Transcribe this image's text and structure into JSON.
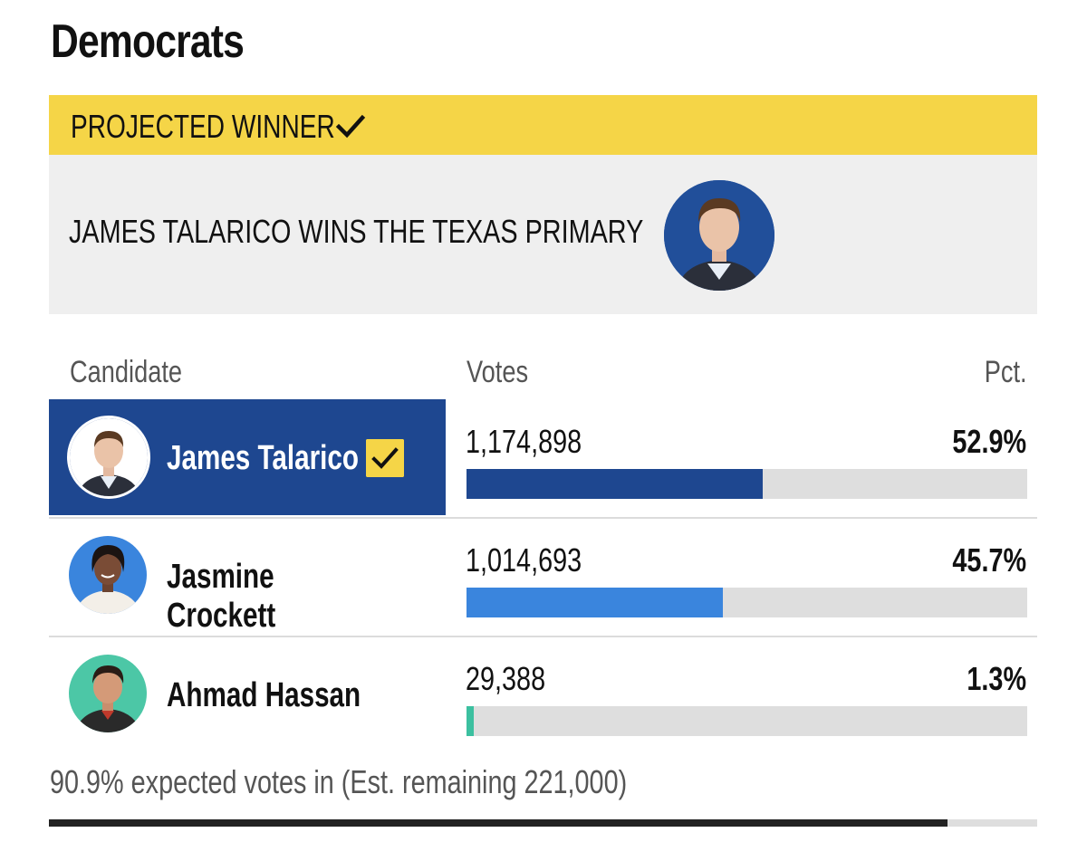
{
  "party_title": "Democrats",
  "banner": {
    "label": "PROJECTED WINNER",
    "accent": "#f5d547"
  },
  "winner_headline": "JAMES TALARICO WINS THE TEXAS PRIMARY",
  "table": {
    "headers": {
      "candidate": "Candidate",
      "votes": "Votes",
      "pct": "Pct."
    },
    "rows": [
      {
        "name": "James Talarico",
        "votes": "1,174,898",
        "pct": "52.9%",
        "share": 52.9,
        "bar_color": "#1e4790",
        "winner": true,
        "avatar_color": "#ffffff"
      },
      {
        "name": "Jasmine Crockett",
        "votes": "1,014,693",
        "pct": "45.7%",
        "share": 45.7,
        "bar_color": "#3a85dd",
        "winner": false,
        "avatar_color": "#3a85dd"
      },
      {
        "name": "Ahmad Hassan",
        "votes": "29,388",
        "pct": "1.3%",
        "share": 1.3,
        "bar_color": "#3cc0a0",
        "winner": false,
        "avatar_color": "#4cc7a6"
      }
    ]
  },
  "footer": {
    "text": "90.9% expected votes in (Est. remaining 221,000)",
    "expected_in": 90.9
  }
}
